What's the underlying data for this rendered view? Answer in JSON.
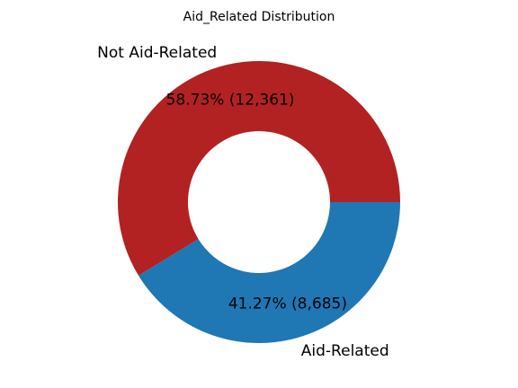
{
  "chart_data": {
    "type": "pie",
    "donut": true,
    "title": "Aid_Related Distribution",
    "slices": [
      {
        "label": "Not Aid-Related",
        "value": 12361,
        "percent_label": "58.73%  (12,361)",
        "color": "#b22222"
      },
      {
        "label": "Aid-Related",
        "value": 8685,
        "percent_label": "41.27%  (8,685)",
        "color": "#1f77b4"
      }
    ],
    "legend": "none"
  }
}
